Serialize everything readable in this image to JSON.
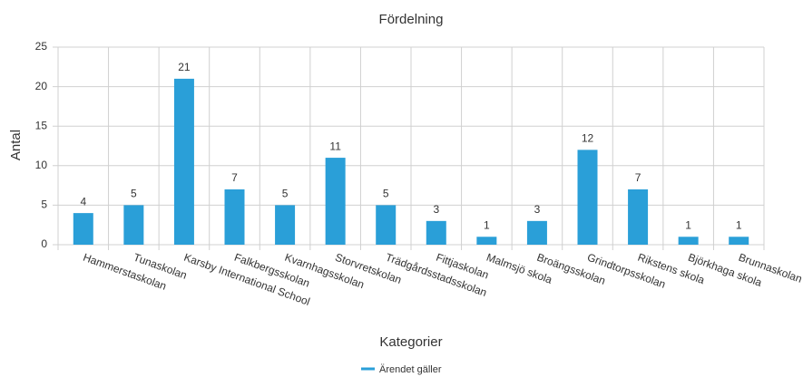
{
  "chart_data": {
    "type": "bar",
    "title": "Fördelning",
    "x_label": "Kategorier",
    "y_label": "Antal",
    "categories": [
      "Hammerstaskolan",
      "Tunaskolan",
      "Karsby International School",
      "Falkbergsskolan",
      "Kvarnhagsskolan",
      "Storvretskolan",
      "Trädgårdsstadsskolan",
      "Fittjaskolan",
      "Malmsjö skola",
      "Broängsskolan",
      "Grindtorpsskolan",
      "Rikstens skola",
      "Björkhaga skola",
      "Brunnaskolan"
    ],
    "series": [
      {
        "name": "Ärendet gäller",
        "color": "#2a9fd8",
        "values": [
          4,
          5,
          21,
          7,
          5,
          11,
          5,
          3,
          1,
          3,
          12,
          7,
          1,
          1
        ]
      }
    ],
    "ylim": [
      0,
      25
    ],
    "yticks": [
      0,
      5,
      10,
      15,
      20,
      25
    ],
    "grid": true,
    "legend": "bottom"
  }
}
